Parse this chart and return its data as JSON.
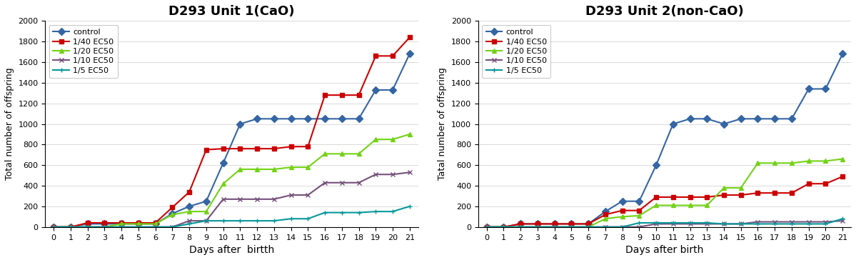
{
  "chart1": {
    "title": "D293 Unit 1(CaO)",
    "xlabel": "Days after  birtth",
    "ylabel": "Total number of offspring",
    "x": [
      0,
      1,
      2,
      3,
      4,
      5,
      6,
      7,
      8,
      9,
      10,
      11,
      12,
      13,
      14,
      15,
      16,
      17,
      18,
      19,
      20,
      21
    ],
    "series": {
      "control": [
        0,
        0,
        30,
        30,
        30,
        30,
        30,
        130,
        200,
        250,
        620,
        1000,
        1050,
        1050,
        1050,
        1050,
        1050,
        1050,
        1050,
        1330,
        1330,
        1680
      ],
      "1/40 EC50": [
        0,
        0,
        40,
        40,
        40,
        40,
        40,
        190,
        340,
        750,
        760,
        760,
        760,
        760,
        780,
        780,
        1280,
        1280,
        1280,
        1660,
        1660,
        1840
      ],
      "1/20 EC50": [
        0,
        0,
        0,
        0,
        30,
        30,
        30,
        120,
        150,
        150,
        420,
        560,
        560,
        560,
        580,
        580,
        710,
        710,
        710,
        850,
        850,
        900
      ],
      "1/10 EC50": [
        0,
        0,
        0,
        0,
        0,
        0,
        0,
        0,
        60,
        60,
        270,
        270,
        270,
        270,
        310,
        310,
        430,
        430,
        430,
        510,
        510,
        530
      ],
      "1/5 EC50": [
        0,
        0,
        0,
        0,
        0,
        0,
        0,
        0,
        30,
        60,
        60,
        60,
        60,
        60,
        80,
        80,
        140,
        140,
        140,
        150,
        150,
        200
      ]
    },
    "colors": {
      "control": "#3465a4",
      "1/40 EC50": "#cc0000",
      "1/20 EC50": "#73d216",
      "1/10 EC50": "#75507b",
      "1/5 EC50": "#06989a"
    },
    "markers": {
      "control": "D",
      "1/40 EC50": "s",
      "1/20 EC50": "^",
      "1/10 EC50": "x",
      "1/5 EC50": "+"
    }
  },
  "chart2": {
    "title": "D293 Unit 2(non-CaO)",
    "xlabel": "Days after birth",
    "ylabel": "Tatal number of offspring",
    "x": [
      0,
      1,
      2,
      3,
      4,
      5,
      6,
      7,
      8,
      9,
      10,
      11,
      12,
      13,
      14,
      15,
      16,
      17,
      18,
      19,
      20,
      21
    ],
    "series": {
      "control": [
        0,
        0,
        30,
        30,
        30,
        30,
        30,
        150,
        250,
        250,
        600,
        1000,
        1050,
        1050,
        1000,
        1050,
        1050,
        1050,
        1050,
        1340,
        1340,
        1680
      ],
      "1/40 EC50": [
        0,
        0,
        30,
        30,
        30,
        30,
        30,
        120,
        160,
        160,
        290,
        290,
        290,
        290,
        310,
        310,
        330,
        330,
        330,
        420,
        420,
        490
      ],
      "1/20 EC50": [
        0,
        0,
        0,
        0,
        0,
        0,
        0,
        80,
        100,
        110,
        210,
        210,
        210,
        210,
        380,
        380,
        620,
        620,
        620,
        640,
        640,
        660
      ],
      "1/10 EC50": [
        0,
        0,
        0,
        0,
        0,
        0,
        0,
        0,
        0,
        0,
        30,
        30,
        30,
        30,
        30,
        30,
        50,
        50,
        50,
        50,
        50,
        60
      ],
      "1/5 EC50": [
        0,
        0,
        0,
        0,
        0,
        0,
        0,
        0,
        0,
        40,
        40,
        40,
        40,
        40,
        30,
        30,
        30,
        30,
        30,
        30,
        30,
        80
      ]
    },
    "colors": {
      "control": "#3465a4",
      "1/40 EC50": "#cc0000",
      "1/20 EC50": "#73d216",
      "1/10 EC50": "#75507b",
      "1/5 EC50": "#06989a"
    },
    "markers": {
      "control": "D",
      "1/40 EC50": "s",
      "1/20 EC50": "^",
      "1/10 EC50": "x",
      "1/5 EC50": "+"
    }
  },
  "ylim": [
    0,
    2000
  ],
  "yticks": [
    0,
    200,
    400,
    600,
    800,
    1000,
    1200,
    1400,
    1600,
    1800,
    2000
  ],
  "xticks": [
    0,
    1,
    2,
    3,
    4,
    5,
    6,
    7,
    8,
    9,
    10,
    11,
    12,
    13,
    14,
    15,
    16,
    17,
    18,
    19,
    20,
    21
  ],
  "legend_labels": [
    "control",
    "1/40 EC50",
    "1/20 EC50",
    "1/10 EC50",
    "1/5 EC50"
  ],
  "bg_color": "#ffffff"
}
